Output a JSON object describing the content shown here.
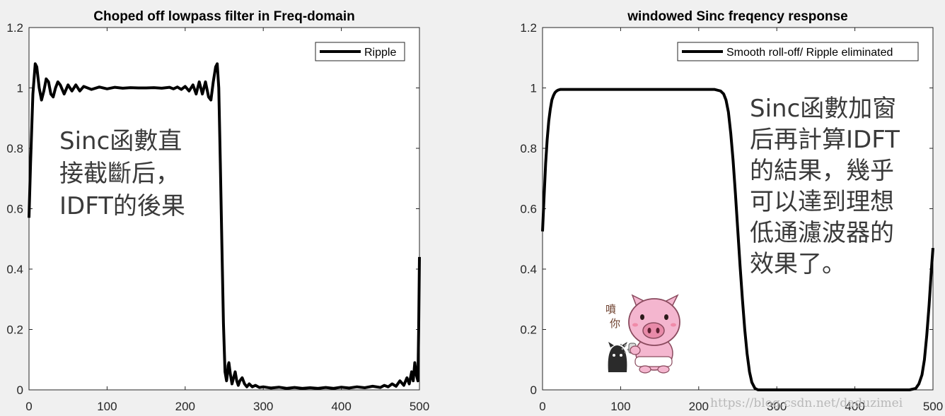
{
  "chart_data": [
    {
      "type": "line",
      "title": "Choped off lowpass filter in Freq-domain",
      "xlabel": "",
      "ylabel": "",
      "xlim": [
        0,
        500
      ],
      "ylim": [
        0,
        1.2
      ],
      "xticks": [
        "0",
        "100",
        "200",
        "300",
        "400",
        "500"
      ],
      "yticks": [
        "0",
        "0.2",
        "0.4",
        "0.6",
        "0.8",
        "1",
        "1.2"
      ],
      "grid": false,
      "legend_position": "top-right",
      "series": [
        {
          "name": "Ripple",
          "color": "#000000",
          "x": [
            0,
            2,
            5,
            8,
            10,
            13,
            16,
            19,
            22,
            25,
            28,
            31,
            34,
            37,
            40,
            45,
            50,
            55,
            60,
            65,
            70,
            80,
            90,
            100,
            110,
            120,
            130,
            140,
            150,
            160,
            170,
            180,
            185,
            190,
            195,
            200,
            205,
            210,
            214,
            218,
            222,
            226,
            230,
            233,
            236,
            239,
            241,
            243,
            245,
            247,
            249,
            251,
            253,
            254,
            255,
            256,
            258,
            260,
            262,
            264,
            266,
            268,
            270,
            273,
            276,
            279,
            282,
            286,
            290,
            295,
            300,
            310,
            320,
            330,
            340,
            350,
            360,
            370,
            380,
            390,
            400,
            410,
            420,
            430,
            440,
            450,
            455,
            460,
            465,
            470,
            475,
            480,
            484,
            487,
            490,
            492,
            494,
            496,
            498,
            499,
            500
          ],
          "y": [
            0.57,
            0.75,
            0.98,
            1.08,
            1.07,
            1.0,
            0.96,
            0.99,
            1.03,
            1.02,
            0.98,
            0.97,
            1.0,
            1.02,
            1.01,
            0.98,
            1.01,
            0.99,
            1.01,
            0.99,
            1.005,
            0.995,
            1.003,
            0.997,
            1.002,
            0.999,
            1.001,
            1.0,
            1.0,
            1.001,
            0.999,
            1.002,
            0.997,
            1.003,
            0.995,
            1.005,
            0.99,
            1.01,
            0.98,
            1.02,
            0.98,
            1.02,
            0.97,
            0.96,
            1.02,
            1.07,
            1.08,
            1.0,
            0.75,
            0.48,
            0.22,
            0.06,
            0.03,
            0.05,
            0.08,
            0.09,
            0.05,
            0.02,
            0.04,
            0.06,
            0.03,
            0.015,
            0.03,
            0.04,
            0.02,
            0.01,
            0.02,
            0.01,
            0.015,
            0.008,
            0.01,
            0.006,
            0.009,
            0.005,
            0.008,
            0.005,
            0.007,
            0.005,
            0.008,
            0.005,
            0.009,
            0.006,
            0.01,
            0.007,
            0.012,
            0.008,
            0.015,
            0.01,
            0.02,
            0.012,
            0.03,
            0.015,
            0.04,
            0.02,
            0.06,
            0.03,
            0.09,
            0.05,
            0.03,
            0.2,
            0.44
          ]
        }
      ],
      "annotation": [
        "Sinc函數直",
        "接截斷后，",
        "IDFT的後果"
      ]
    },
    {
      "type": "line",
      "title": "windowed Sinc freqency response",
      "xlabel": "",
      "ylabel": "",
      "xlim": [
        0,
        500
      ],
      "ylim": [
        0,
        1.2
      ],
      "xticks": [
        "0",
        "100",
        "200",
        "300",
        "400",
        "500"
      ],
      "yticks": [
        "0",
        "0.2",
        "0.4",
        "0.6",
        "0.8",
        "1",
        "1.2"
      ],
      "grid": false,
      "legend_position": "top-right",
      "series": [
        {
          "name": "Smooth roll-off/ Ripple eliminated",
          "color": "#000000",
          "x": [
            0,
            2,
            4,
            6,
            8,
            10,
            12,
            14,
            16,
            18,
            20,
            23,
            26,
            30,
            40,
            60,
            100,
            150,
            200,
            220,
            228,
            232,
            235,
            238,
            241,
            244,
            247,
            250,
            253,
            256,
            259,
            262,
            265,
            268,
            272,
            276,
            300,
            350,
            400,
            450,
            470,
            478,
            482,
            486,
            489,
            492,
            495,
            498,
            500
          ],
          "y": [
            0.525,
            0.64,
            0.75,
            0.83,
            0.89,
            0.93,
            0.96,
            0.975,
            0.985,
            0.99,
            0.993,
            0.995,
            0.995,
            0.995,
            0.995,
            0.995,
            0.995,
            0.995,
            0.995,
            0.995,
            0.99,
            0.98,
            0.96,
            0.92,
            0.85,
            0.76,
            0.65,
            0.53,
            0.41,
            0.3,
            0.2,
            0.12,
            0.06,
            0.025,
            0.005,
            0.0,
            0.0,
            0.0,
            0.0,
            0.0,
            0.0,
            0.005,
            0.02,
            0.05,
            0.1,
            0.18,
            0.28,
            0.4,
            0.47
          ]
        }
      ],
      "annotation": [
        "Sinc函數加窗",
        "后再計算IDFT",
        "的結果，幾乎",
        "可以達到理想",
        "低通濾波器的",
        "效果了。"
      ]
    }
  ],
  "sticker": {
    "text": [
      "噴",
      "你"
    ]
  },
  "watermark": "https://blog.csdn.net/daduzimei"
}
